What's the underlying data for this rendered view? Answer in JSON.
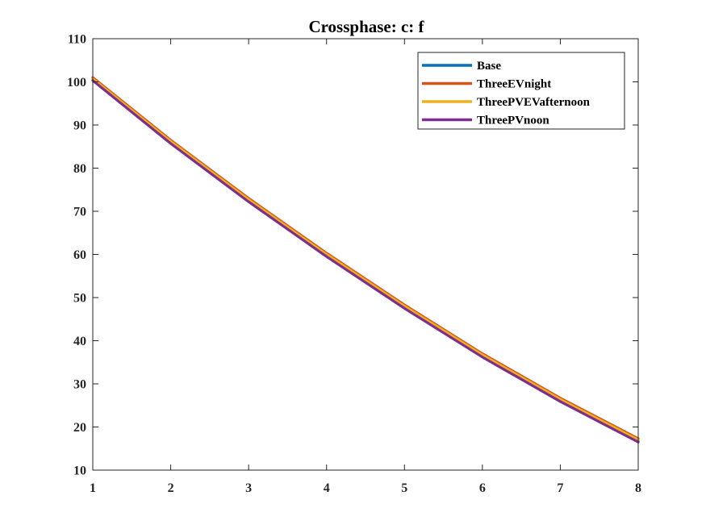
{
  "chart_data": {
    "type": "line",
    "title": "Crossphase: c: f",
    "xlabel": "",
    "ylabel": "",
    "xlim": [
      1,
      8
    ],
    "ylim": [
      10,
      110
    ],
    "xticks": [
      "1",
      "2",
      "3",
      "4",
      "5",
      "6",
      "7",
      "8"
    ],
    "yticks": [
      "10",
      "20",
      "30",
      "40",
      "50",
      "60",
      "70",
      "80",
      "90",
      "100",
      "110"
    ],
    "x": [
      1,
      2,
      3,
      4,
      5,
      6,
      7,
      8
    ],
    "grid": false,
    "legend_position": "top-right",
    "series": [
      {
        "name": "Base",
        "color": "#0072BD",
        "values": [
          100.5,
          86.0,
          72.5,
          59.8,
          47.8,
          36.5,
          26.2,
          16.8
        ]
      },
      {
        "name": "ThreeEVnight",
        "color": "#D95319",
        "values": [
          101.0,
          86.5,
          73.0,
          60.3,
          48.3,
          37.0,
          26.7,
          17.3
        ]
      },
      {
        "name": "ThreePVEVafternoon",
        "color": "#EDB120",
        "values": [
          100.7,
          86.2,
          72.7,
          60.0,
          48.0,
          36.7,
          26.4,
          17.0
        ]
      },
      {
        "name": "ThreePVnoon",
        "color": "#7E2F8E",
        "values": [
          100.3,
          85.7,
          72.2,
          59.5,
          47.5,
          36.2,
          25.9,
          16.5
        ]
      }
    ]
  }
}
